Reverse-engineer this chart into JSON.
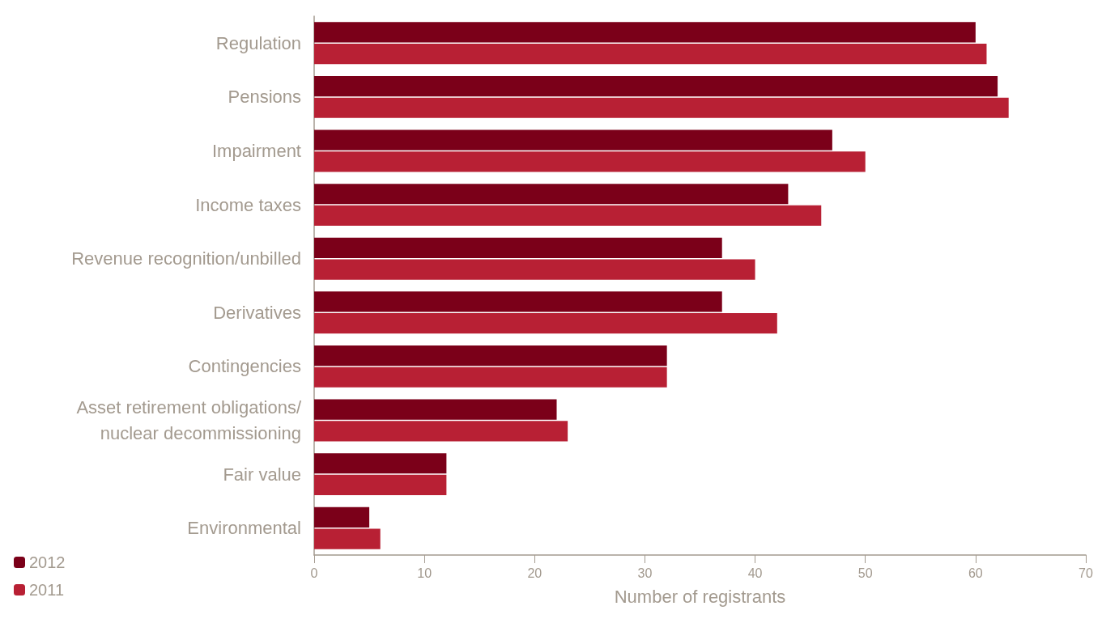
{
  "chart_data": {
    "type": "bar",
    "orientation": "horizontal",
    "xlabel": "Number of registrants",
    "categories": [
      "Regulation",
      "Pensions",
      "Impairment",
      "Income taxes",
      "Revenue recognition/unbilled",
      "Derivatives",
      "Contingencies",
      "Asset retirement obligations/\nnuclear decommissioning",
      "Fair value",
      "Environmental"
    ],
    "series": [
      {
        "name": "2012",
        "color": "#7b0019",
        "values": [
          60,
          62,
          47,
          43,
          37,
          37,
          32,
          22,
          12,
          5
        ]
      },
      {
        "name": "2011",
        "color": "#b82034",
        "values": [
          61,
          63,
          50,
          46,
          40,
          42,
          32,
          23,
          12,
          6
        ]
      }
    ],
    "xlim": [
      0,
      70
    ],
    "xticks": [
      0,
      10,
      20,
      30,
      40,
      50,
      60,
      70
    ],
    "grid": false,
    "legend": "bottom left"
  }
}
